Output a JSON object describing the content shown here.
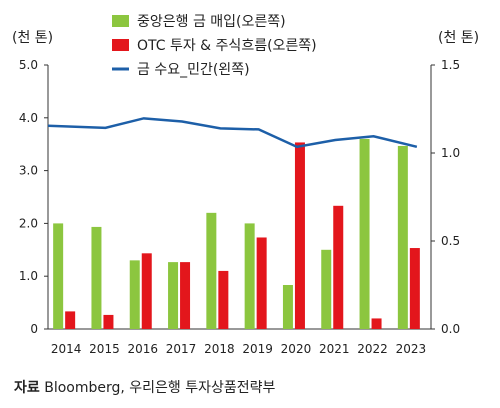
{
  "chart_data": {
    "type": "bar",
    "categories": [
      "2014",
      "2015",
      "2016",
      "2017",
      "2018",
      "2019",
      "2020",
      "2021",
      "2022",
      "2023"
    ],
    "series": [
      {
        "name": "중앙은행 금 매입(오른쪽)",
        "chart": "bar",
        "axis": "right",
        "color": "#8cc63f",
        "values": [
          0.6,
          0.58,
          0.39,
          0.38,
          0.66,
          0.6,
          0.25,
          0.45,
          1.08,
          1.04
        ]
      },
      {
        "name": "OTC 투자 & 주식흐름(오른쪽)",
        "chart": "bar",
        "axis": "right",
        "color": "#e3161c",
        "values": [
          0.1,
          0.08,
          0.43,
          0.38,
          0.33,
          0.52,
          1.06,
          0.7,
          0.06,
          0.46
        ]
      },
      {
        "name": "금 수요_민간(왼쪽)",
        "chart": "line",
        "axis": "left",
        "color": "#1d5fa8",
        "values": [
          3.85,
          3.81,
          3.99,
          3.93,
          3.8,
          3.78,
          3.45,
          3.58,
          3.65,
          3.45
        ]
      }
    ],
    "left_axis": {
      "unit": "(천 톤)",
      "ylim": [
        0,
        5
      ],
      "ticks": [
        "0",
        "1.0",
        "2.0",
        "3.0",
        "4.0",
        "5.0"
      ]
    },
    "right_axis": {
      "unit": "(천 톤)",
      "ylim": [
        0,
        1.5
      ],
      "ticks": [
        "0.0",
        "0.5",
        "1.0",
        "1.5"
      ]
    },
    "grid": false,
    "legend_position": "top-center"
  },
  "source": {
    "label": "자료",
    "text": "Bloomberg, 우리은행 투자상품전략부"
  }
}
